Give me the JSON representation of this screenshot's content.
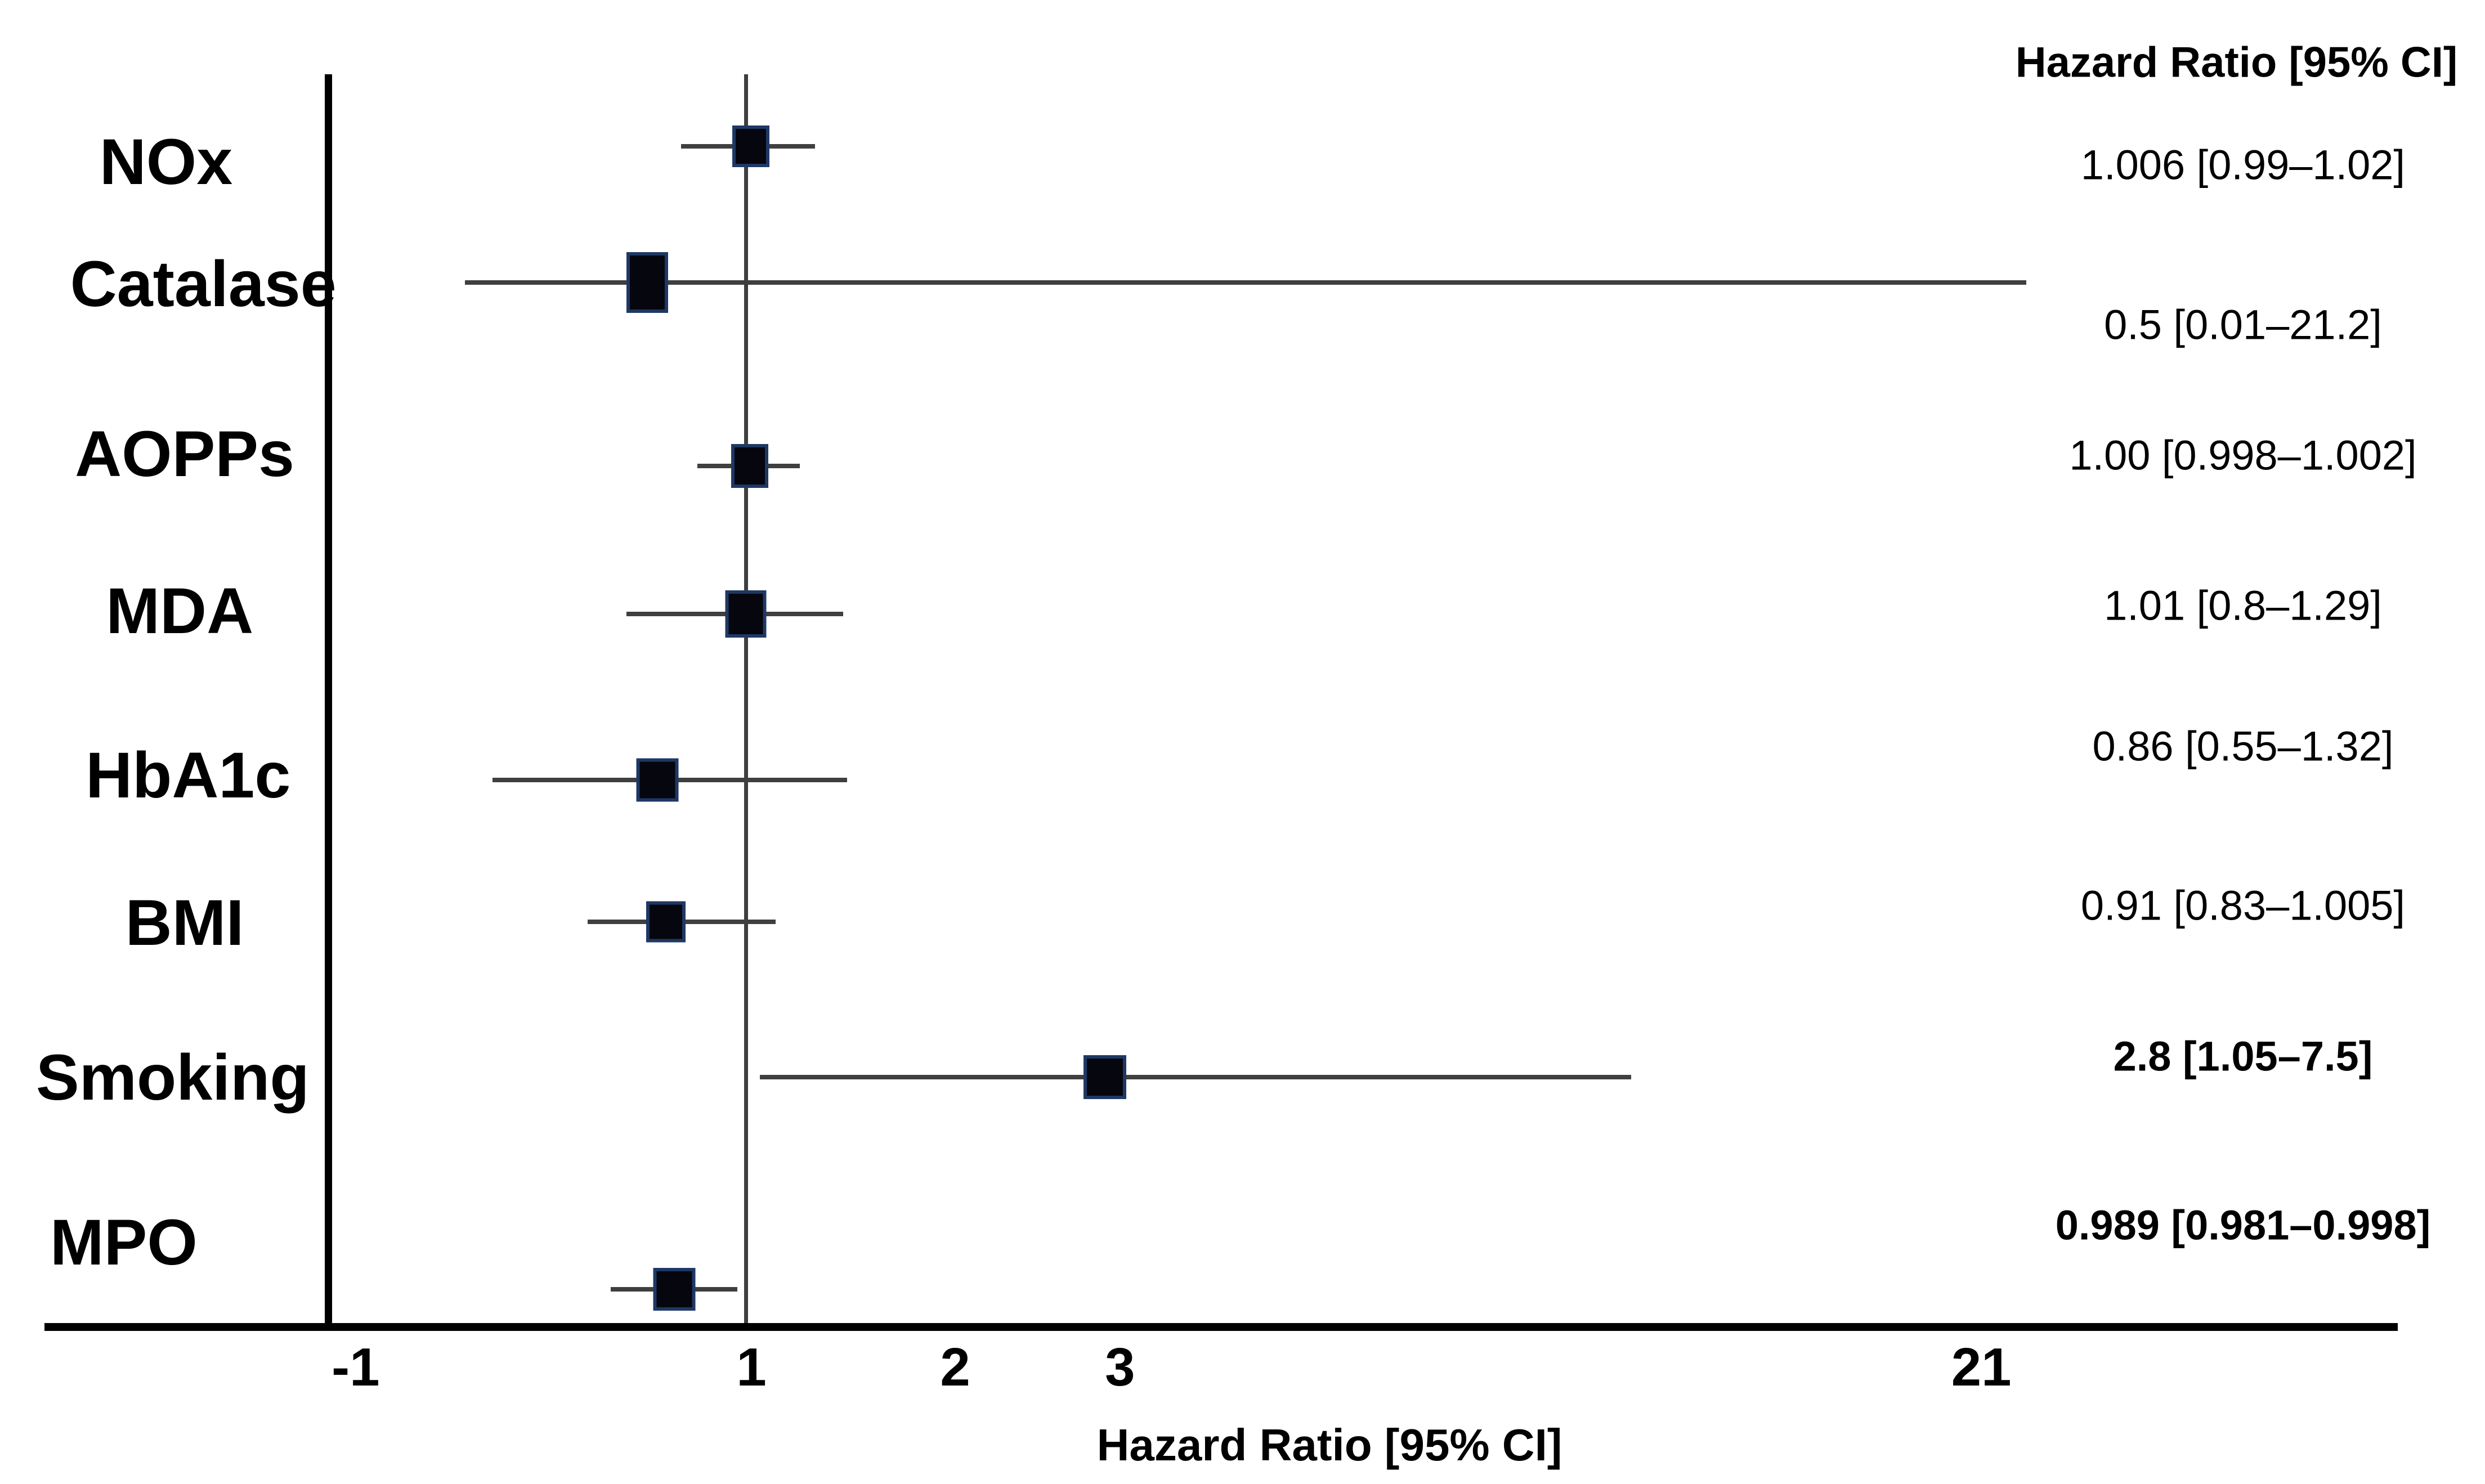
{
  "chart_data": {
    "type": "forest",
    "title": "",
    "right_column_header": "Hazard Ratio [95% CI]",
    "xlabel": "Hazard Ratio [95% CI]",
    "ylabel": "",
    "grid": false,
    "legend": "none",
    "axis_note": "non-linear hand-placed axis; reference line drawn at HR = 1",
    "x_axis": {
      "ticks": [
        {
          "label": "-1",
          "x_pct": 14.31
        },
        {
          "label": "1",
          "x_pct": 30.24
        },
        {
          "label": "2",
          "x_pct": 38.44
        },
        {
          "label": "3",
          "x_pct": 45.07
        },
        {
          "label": "21",
          "x_pct": 79.73
        }
      ]
    },
    "colors": {
      "marker_fill": "#06060e",
      "marker_border": "#1f3864",
      "line": "#3f3f3f",
      "axis": "#000000"
    },
    "rows": [
      {
        "label": "NOx",
        "hr": 1.006,
        "ci_low": 0.99,
        "ci_high": 1.02,
        "value_text": "1.006 [0.99–1.02]",
        "bold": false,
        "label_x": 6.68,
        "label_y": 10.92,
        "marker_x": 30.21,
        "marker_y": 9.86,
        "ci_lo": 27.41,
        "ci_hi": 32.8,
        "value_y": 11.11,
        "mw": 66,
        "mh": 74
      },
      {
        "label": "Catalase",
        "hr": 0.5,
        "ci_low": 0.01,
        "ci_high": 21.2,
        "value_text": "0.5 [0.01–21.2]",
        "bold": false,
        "label_x": 8.18,
        "label_y": 19.15,
        "marker_x": 26.05,
        "marker_y": 19.04,
        "ci_lo": 18.71,
        "ci_hi": 81.54,
        "value_y": 21.88,
        "mw": 74,
        "mh": 108
      },
      {
        "label": "AOPPs",
        "hr": 1.0,
        "ci_low": 0.998,
        "ci_high": 1.002,
        "value_text": "1.00 [0.998–1.002]",
        "bold": false,
        "label_x": 7.43,
        "label_y": 30.6,
        "marker_x": 30.17,
        "marker_y": 31.4,
        "ci_lo": 28.06,
        "ci_hi": 32.19,
        "value_y": 30.68,
        "mw": 66,
        "mh": 78
      },
      {
        "label": "MDA",
        "hr": 1.01,
        "ci_low": 0.8,
        "ci_high": 1.29,
        "value_text": "1.01 [0.8–1.29]",
        "bold": false,
        "label_x": 7.23,
        "label_y": 41.18,
        "marker_x": 30.01,
        "marker_y": 41.37,
        "ci_lo": 25.21,
        "ci_hi": 33.93,
        "value_y": 40.8,
        "mw": 73,
        "mh": 84
      },
      {
        "label": "HbA1c",
        "hr": 0.86,
        "ci_low": 0.55,
        "ci_high": 1.32,
        "value_text": "0.86 [0.55–1.32]",
        "bold": false,
        "label_x": 7.57,
        "label_y": 52.26,
        "marker_x": 26.46,
        "marker_y": 52.56,
        "ci_lo": 19.82,
        "ci_hi": 34.09,
        "value_y": 50.28,
        "mw": 75,
        "mh": 77
      },
      {
        "label": "BMI",
        "hr": 0.91,
        "ci_low": 0.83,
        "ci_high": 1.005,
        "value_text": "0.91 [0.83–1.005]",
        "bold": false,
        "label_x": 7.43,
        "label_y": 62.19,
        "marker_x": 26.79,
        "marker_y": 62.12,
        "ci_lo": 23.65,
        "ci_hi": 31.21,
        "value_y": 61.02,
        "mw": 70,
        "mh": 73
      },
      {
        "label": "Smoking",
        "hr": 2.8,
        "ci_low": 1.05,
        "ci_high": 7.5,
        "value_text": "2.8 [1.05–7.5]",
        "bold": true,
        "label_x": 6.95,
        "label_y": 72.62,
        "marker_x": 44.46,
        "marker_y": 72.58,
        "ci_lo": 30.58,
        "ci_hi": 65.64,
        "value_y": 71.18,
        "mw": 76,
        "mh": 78
      },
      {
        "label": "MPO",
        "hr": 0.989,
        "ci_low": 0.981,
        "ci_high": 0.998,
        "value_text": "0.989 [0.981–0.998]",
        "bold": true,
        "label_x": 4.98,
        "label_y": 83.73,
        "marker_x": 27.13,
        "marker_y": 86.88,
        "ci_lo": 24.58,
        "ci_hi": 29.67,
        "value_y": 82.56,
        "mw": 75,
        "mh": 76
      }
    ],
    "value_column_x_pct": 90.26
  }
}
